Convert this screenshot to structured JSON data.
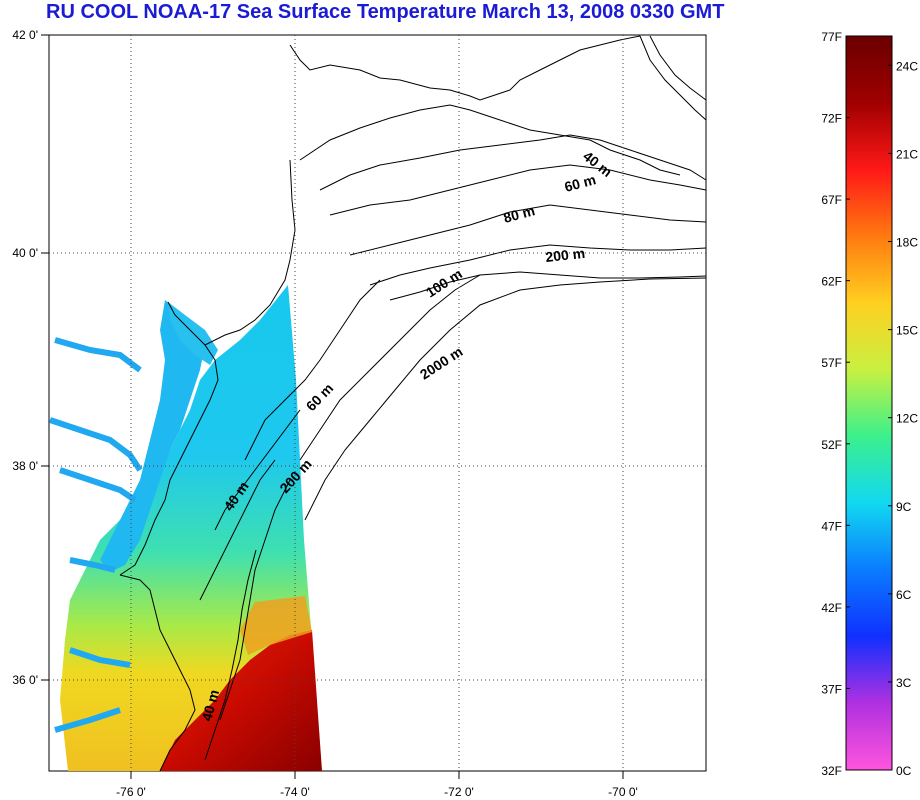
{
  "title": "RU COOL  NOAA-17 Sea Surface Temperature March 13, 2008 0330 GMT",
  "map": {
    "lat_labels": [
      {
        "lat": 42,
        "text": "42 0'"
      },
      {
        "lat": 40,
        "text": "40 0'"
      },
      {
        "lat": 38,
        "text": "38 0'"
      },
      {
        "lat": 36,
        "text": "36 0'"
      }
    ],
    "lon_labels": [
      {
        "lon": -76,
        "text": "-76 0'"
      },
      {
        "lon": -74,
        "text": "-74 0'"
      },
      {
        "lon": -72,
        "text": "-72 0'"
      },
      {
        "lon": -70,
        "text": "-70 0'"
      }
    ],
    "depth_labels": [
      "40 m",
      "60 m",
      "80 m",
      "200 m",
      "100 m",
      "2000 m",
      "60 m",
      "200 m",
      "40 m",
      "40 m"
    ]
  },
  "colorbar": {
    "fahrenheit_labels": [
      "77F",
      "72F",
      "67F",
      "62F",
      "57F",
      "52F",
      "47F",
      "42F",
      "37F",
      "32F"
    ],
    "celsius_labels": [
      "24C",
      "21C",
      "18C",
      "15C",
      "12C",
      "9C",
      "6C",
      "3C",
      "0C"
    ],
    "colors": [
      "#ff55dd",
      "#b030e0",
      "#1030ff",
      "#0a7cff",
      "#12d8f0",
      "#3cf08c",
      "#c8f040",
      "#ffd020",
      "#ff7a10",
      "#ff1818",
      "#a00000",
      "#6a0000"
    ]
  }
}
